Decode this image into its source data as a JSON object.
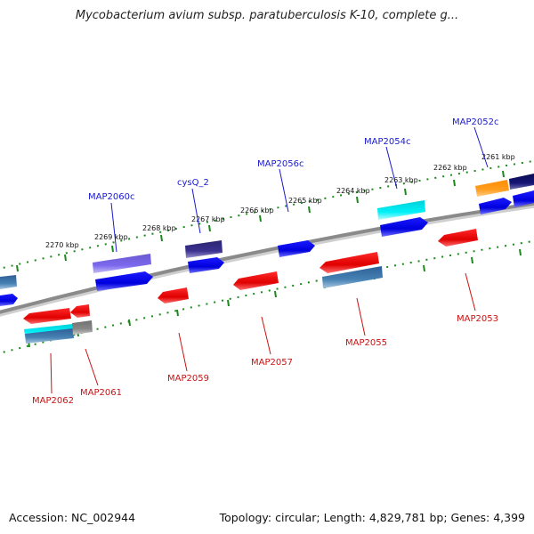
{
  "title": "Mycobacterium avium subsp. paratuberculosis K-10, complete g...",
  "footer": {
    "accession": "Accession: NC_002944",
    "summary": "Topology: circular; Length: 4,829,781 bp; Genes: 4,399"
  },
  "colors": {
    "backbone": "#8a8a8a",
    "tick": "#1a8a1a",
    "forward_label": "#1a1acc",
    "reverse_label": "#cc1111"
  },
  "kbp_ticks": [
    {
      "kbp": 2270,
      "label": "2270 kbp"
    },
    {
      "kbp": 2269,
      "label": "2269 kbp"
    },
    {
      "kbp": 2268,
      "label": "2268 kbp"
    },
    {
      "kbp": 2267,
      "label": "2267 kbp"
    },
    {
      "kbp": 2266,
      "label": "2266 kbp"
    },
    {
      "kbp": 2265,
      "label": "2265 kbp"
    },
    {
      "kbp": 2264,
      "label": "2264 kbp"
    },
    {
      "kbp": 2263,
      "label": "2263 kbp"
    },
    {
      "kbp": 2262,
      "label": "2262 kbp"
    },
    {
      "kbp": 2261,
      "label": "2261 kbp"
    }
  ],
  "forward_labels": [
    {
      "name": "MAP2060c",
      "text": "MAP2060c"
    },
    {
      "name": "cysQ_2",
      "text": "cysQ_2"
    },
    {
      "name": "MAP2056c",
      "text": "MAP2056c"
    },
    {
      "name": "MAP2054c",
      "text": "MAP2054c"
    },
    {
      "name": "MAP2052c",
      "text": "MAP2052c"
    }
  ],
  "reverse_labels": [
    {
      "name": "MAP2062",
      "text": "MAP2062"
    },
    {
      "name": "MAP2061",
      "text": "MAP2061"
    },
    {
      "name": "MAP2059",
      "text": "MAP2059"
    },
    {
      "name": "MAP2057",
      "text": "MAP2057"
    },
    {
      "name": "MAP2055",
      "text": "MAP2055"
    },
    {
      "name": "MAP2053",
      "text": "MAP2053"
    }
  ]
}
